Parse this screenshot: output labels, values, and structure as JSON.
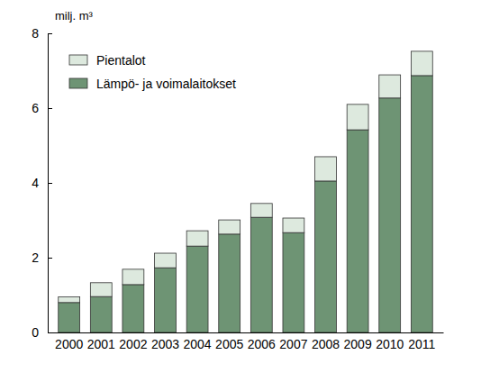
{
  "chart_data": {
    "type": "bar",
    "stacked": true,
    "ylabel": "milj. m³",
    "categories": [
      "2000",
      "2001",
      "2002",
      "2003",
      "2004",
      "2005",
      "2006",
      "2007",
      "2008",
      "2009",
      "2010",
      "2011"
    ],
    "series": [
      {
        "name": "Lämpö- ja voimalaitokset",
        "color": "#6e9474",
        "values": [
          0.8,
          0.96,
          1.28,
          1.73,
          2.31,
          2.63,
          3.08,
          2.67,
          4.05,
          5.42,
          6.27,
          6.87
        ]
      },
      {
        "name": "Pientalot",
        "color": "#dde9de",
        "values": [
          0.15,
          0.37,
          0.41,
          0.39,
          0.41,
          0.38,
          0.37,
          0.39,
          0.65,
          0.68,
          0.62,
          0.65
        ]
      }
    ],
    "ylim": [
      0,
      8
    ],
    "yticks": [
      0,
      2,
      4,
      6,
      8
    ],
    "grid": false,
    "legend": "upper left"
  }
}
